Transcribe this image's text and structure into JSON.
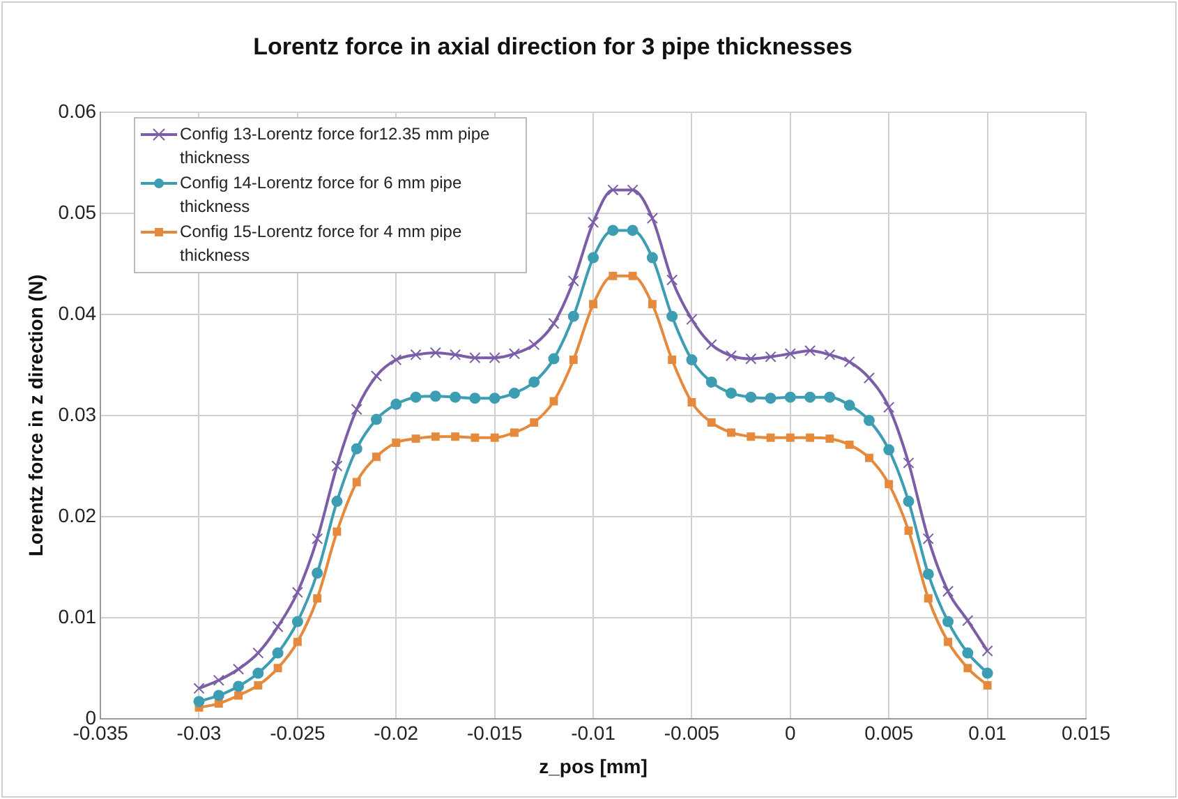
{
  "chart_data": {
    "type": "line",
    "title": "Lorentz force in axial direction for 3 pipe thicknesses",
    "xlabel": "z_pos [mm]",
    "ylabel": "Lorentz force in z direction (N)",
    "x": [
      -0.03,
      -0.029,
      -0.028,
      -0.027,
      -0.026,
      -0.025,
      -0.024,
      -0.023,
      -0.022,
      -0.021,
      -0.02,
      -0.019,
      -0.018,
      -0.017,
      -0.016,
      -0.015,
      -0.014,
      -0.013,
      -0.012,
      -0.011,
      -0.01,
      -0.009,
      -0.008,
      -0.007,
      -0.006,
      -0.005,
      -0.004,
      -0.003,
      -0.002,
      -0.001,
      0,
      0.001,
      0.002,
      0.003,
      0.004,
      0.005,
      0.006,
      0.007,
      0.008,
      0.009,
      0.01
    ],
    "series": [
      {
        "name": "Config 13-Lorentz force for12.35 mm pipe thickness",
        "color": "#7b5ea7",
        "marker": "cross",
        "values": [
          0.003,
          0.0038,
          0.0049,
          0.0065,
          0.0091,
          0.0125,
          0.0178,
          0.025,
          0.0306,
          0.0339,
          0.0355,
          0.036,
          0.0362,
          0.036,
          0.0357,
          0.0357,
          0.0361,
          0.037,
          0.0391,
          0.0433,
          0.0491,
          0.0523,
          0.0523,
          0.0495,
          0.0434,
          0.0395,
          0.037,
          0.0359,
          0.0356,
          0.0358,
          0.0361,
          0.0364,
          0.036,
          0.0353,
          0.0337,
          0.0308,
          0.0253,
          0.0178,
          0.0126,
          0.0097,
          0.0067
        ]
      },
      {
        "name": "Config 14-Lorentz force for 6 mm pipe thickness",
        "color": "#3d9db3",
        "marker": "circle",
        "values": [
          0.0017,
          0.0023,
          0.0032,
          0.0045,
          0.0065,
          0.0096,
          0.0144,
          0.0215,
          0.0267,
          0.0296,
          0.0311,
          0.0318,
          0.0319,
          0.0318,
          0.0317,
          0.0317,
          0.0322,
          0.0333,
          0.0356,
          0.0398,
          0.0456,
          0.0483,
          0.0483,
          0.0456,
          0.0398,
          0.0355,
          0.0333,
          0.0322,
          0.0318,
          0.0317,
          0.0318,
          0.0318,
          0.0318,
          0.031,
          0.0295,
          0.0266,
          0.0215,
          0.0143,
          0.0096,
          0.0065,
          0.0045
        ]
      },
      {
        "name": "Config 15-Lorentz force for 4 mm pipe thickness",
        "color": "#e58a3c",
        "marker": "square",
        "values": [
          0.0011,
          0.0015,
          0.0023,
          0.0033,
          0.005,
          0.0076,
          0.0119,
          0.0185,
          0.0234,
          0.0259,
          0.0273,
          0.0277,
          0.0279,
          0.0279,
          0.0278,
          0.0278,
          0.0283,
          0.0293,
          0.0314,
          0.0355,
          0.041,
          0.0438,
          0.0438,
          0.041,
          0.0355,
          0.0313,
          0.0293,
          0.0283,
          0.0279,
          0.0278,
          0.0278,
          0.0278,
          0.0277,
          0.0271,
          0.0258,
          0.0232,
          0.0186,
          0.0119,
          0.0076,
          0.005,
          0.0033
        ]
      }
    ],
    "xlim": [
      -0.035,
      0.015
    ],
    "xticks": [
      -0.035,
      -0.03,
      -0.025,
      -0.02,
      -0.015,
      -0.01,
      -0.005,
      0,
      0.005,
      0.01,
      0.015
    ],
    "ylim": [
      0,
      0.06
    ],
    "yticks": [
      0,
      0.01,
      0.02,
      0.03,
      0.04,
      0.05,
      0.06
    ],
    "grid": true,
    "legend": "top left"
  }
}
